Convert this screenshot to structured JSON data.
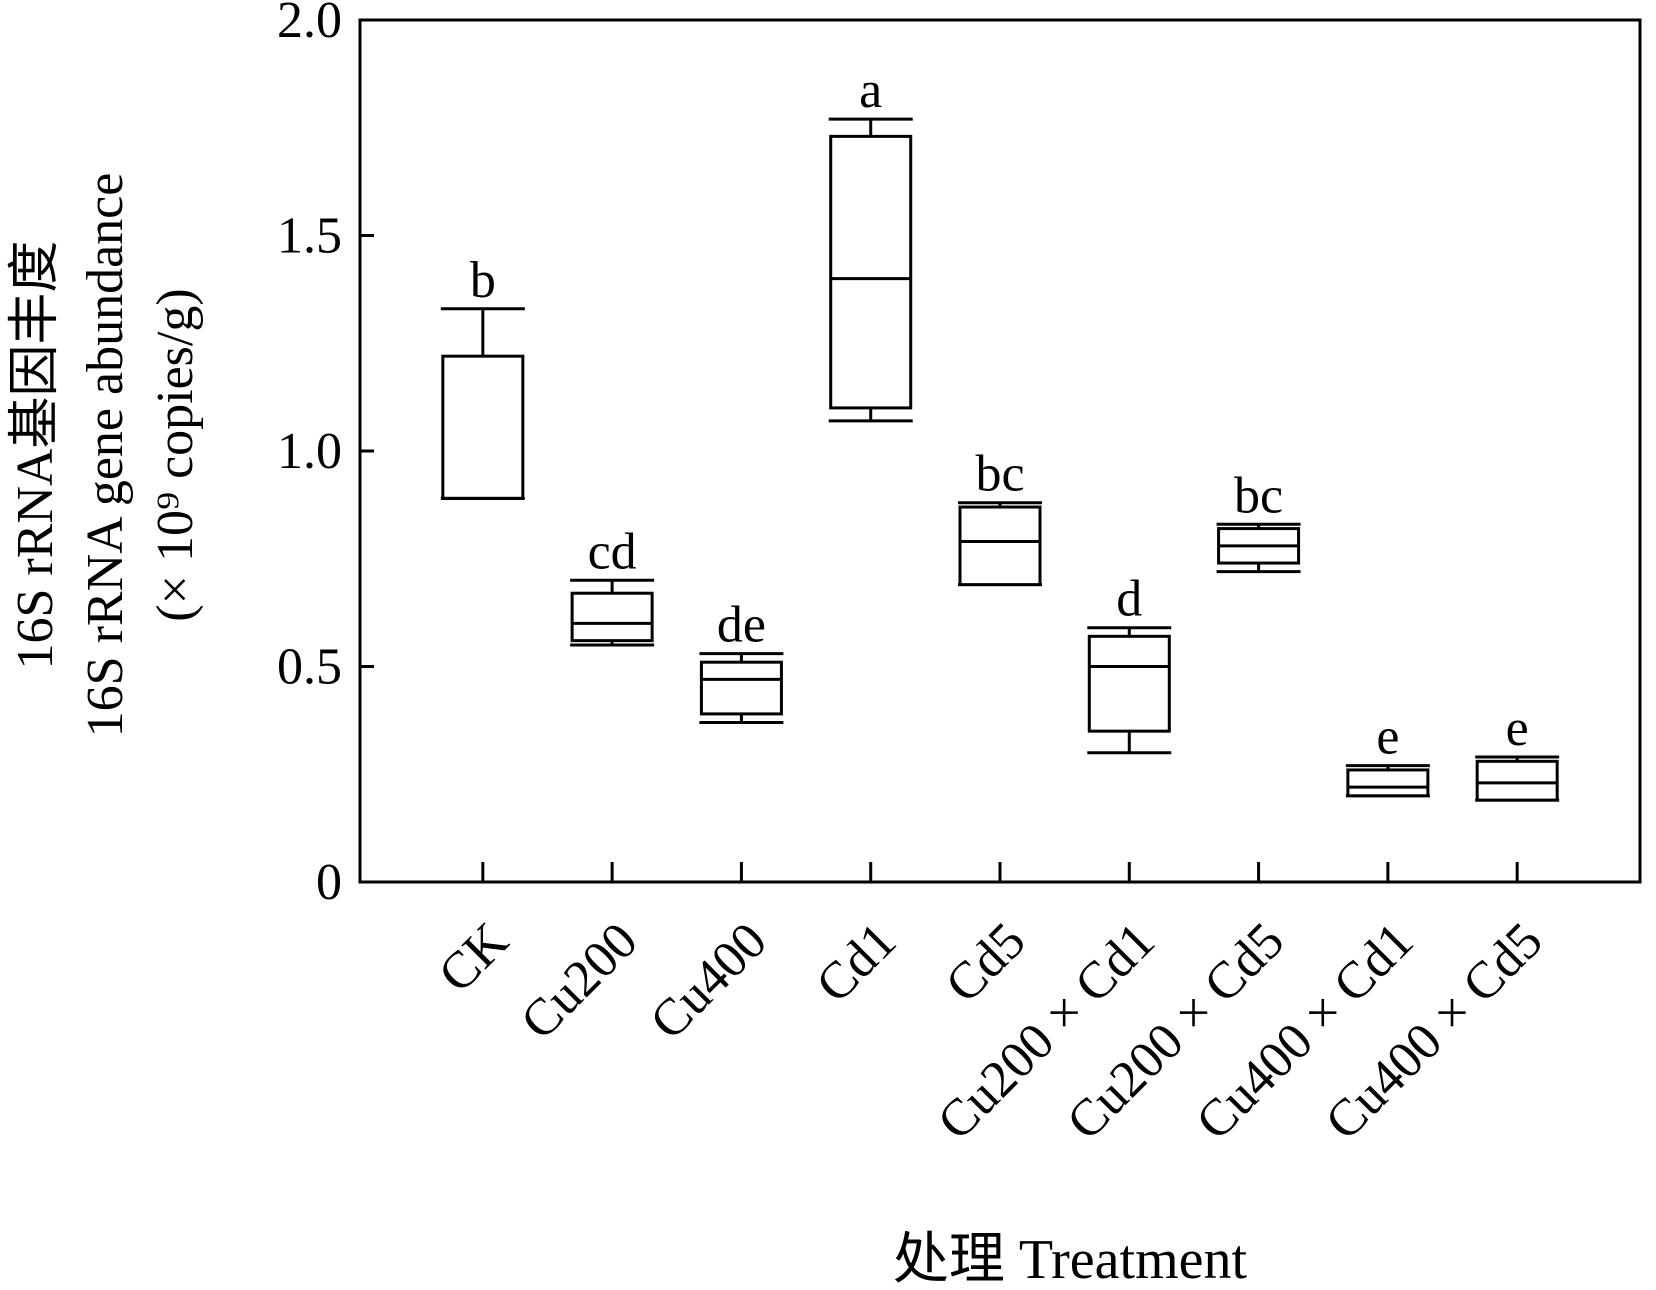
{
  "chart_data": {
    "type": "box",
    "title": "",
    "xlabel": "处理 Treatment",
    "ylabel_lines": [
      "16S rRNA基因丰度",
      "16S rRNA gene abundance",
      "(× 10⁹ copies/g)"
    ],
    "ylim": [
      0,
      2.0
    ],
    "yticks": [
      {
        "value": 0,
        "label": "0"
      },
      {
        "value": 0.5,
        "label": "0.5"
      },
      {
        "value": 1.0,
        "label": "1.0"
      },
      {
        "value": 1.5,
        "label": "1.5"
      },
      {
        "value": 2.0,
        "label": "2.0"
      }
    ],
    "grid": false,
    "legend": "none",
    "categories": [
      "CK",
      "Cu200",
      "Cu400",
      "Cd1",
      "Cd5",
      "Cu200 × Cd1",
      "Cu200 × Cd5",
      "Cu400 × Cd1",
      "Cu400 × Cd5"
    ],
    "boxes": [
      {
        "min": 0.89,
        "q1": 0.89,
        "median": 0.89,
        "q3": 1.22,
        "max": 1.33,
        "letter": "b"
      },
      {
        "min": 0.55,
        "q1": 0.56,
        "median": 0.6,
        "q3": 0.67,
        "max": 0.7,
        "letter": "cd"
      },
      {
        "min": 0.37,
        "q1": 0.39,
        "median": 0.47,
        "q3": 0.51,
        "max": 0.53,
        "letter": "de"
      },
      {
        "min": 1.07,
        "q1": 1.1,
        "median": 1.4,
        "q3": 1.73,
        "max": 1.77,
        "letter": "a"
      },
      {
        "min": 0.69,
        "q1": 0.69,
        "median": 0.79,
        "q3": 0.87,
        "max": 0.88,
        "letter": "bc"
      },
      {
        "min": 0.3,
        "q1": 0.35,
        "median": 0.5,
        "q3": 0.57,
        "max": 0.59,
        "letter": "d"
      },
      {
        "min": 0.72,
        "q1": 0.74,
        "median": 0.78,
        "q3": 0.82,
        "max": 0.83,
        "letter": "bc"
      },
      {
        "min": 0.2,
        "q1": 0.2,
        "median": 0.22,
        "q3": 0.26,
        "max": 0.27,
        "letter": "e"
      },
      {
        "min": 0.19,
        "q1": 0.19,
        "median": 0.23,
        "q3": 0.28,
        "max": 0.29,
        "letter": "e"
      }
    ]
  }
}
